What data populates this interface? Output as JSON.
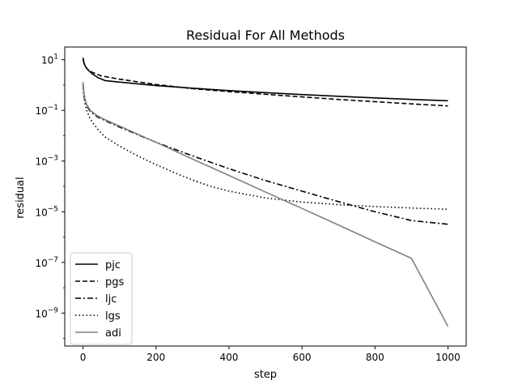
{
  "chart_data": {
    "type": "line",
    "title": "Residual For All Methods",
    "xlabel": "step",
    "ylabel": "residual",
    "xlim": [
      -50,
      1050
    ],
    "ylim_log10": [
      -10.3,
      1.5
    ],
    "yscale": "log",
    "grid": false,
    "legend_position": "lower-left",
    "x_ticks": [
      0,
      200,
      400,
      600,
      800,
      1000
    ],
    "y_ticks": [
      {
        "exp": 1,
        "base": "10",
        "sup": "1"
      },
      {
        "exp": -1,
        "base": "10",
        "sup": "−1"
      },
      {
        "exp": -3,
        "base": "10",
        "sup": "−3"
      },
      {
        "exp": -5,
        "base": "10",
        "sup": "−5"
      },
      {
        "exp": -7,
        "base": "10",
        "sup": "−7"
      },
      {
        "exp": -9,
        "base": "10",
        "sup": "−9"
      }
    ],
    "series": [
      {
        "name": "pjc",
        "style": "solid",
        "color": "#000000",
        "points": [
          [
            0,
            12
          ],
          [
            3,
            7
          ],
          [
            8,
            5
          ],
          [
            15,
            3.8
          ],
          [
            25,
            2.8
          ],
          [
            40,
            2.0
          ],
          [
            60,
            1.5
          ],
          [
            100,
            1.3
          ],
          [
            200,
            0.95
          ],
          [
            300,
            0.75
          ],
          [
            400,
            0.6
          ],
          [
            500,
            0.5
          ],
          [
            600,
            0.42
          ],
          [
            700,
            0.36
          ],
          [
            800,
            0.31
          ],
          [
            900,
            0.27
          ],
          [
            1000,
            0.24
          ]
        ]
      },
      {
        "name": "pgs",
        "style": "dashed",
        "color": "#000000",
        "points": [
          [
            0,
            10
          ],
          [
            5,
            6
          ],
          [
            12,
            4.2
          ],
          [
            25,
            3.2
          ],
          [
            50,
            2.3
          ],
          [
            100,
            1.7
          ],
          [
            200,
            1.05
          ],
          [
            300,
            0.72
          ],
          [
            400,
            0.55
          ],
          [
            500,
            0.43
          ],
          [
            600,
            0.34
          ],
          [
            700,
            0.27
          ],
          [
            800,
            0.22
          ],
          [
            900,
            0.18
          ],
          [
            1000,
            0.15
          ]
        ]
      },
      {
        "name": "ljc",
        "style": "dashdot",
        "color": "#000000",
        "points": [
          [
            0,
            1.2
          ],
          [
            2,
            0.5
          ],
          [
            5,
            0.25
          ],
          [
            10,
            0.15
          ],
          [
            20,
            0.09
          ],
          [
            40,
            0.055
          ],
          [
            60,
            0.04
          ],
          [
            100,
            0.022
          ],
          [
            150,
            0.011
          ],
          [
            200,
            0.0055
          ],
          [
            300,
            0.0016
          ],
          [
            400,
            0.0005
          ],
          [
            500,
            0.00017
          ],
          [
            600,
            6.5e-05
          ],
          [
            700,
            2.5e-05
          ],
          [
            800,
            1e-05
          ],
          [
            900,
            4.5e-06
          ],
          [
            1000,
            3.2e-06
          ]
        ]
      },
      {
        "name": "lgs",
        "style": "dotted",
        "color": "#000000",
        "points": [
          [
            0,
            1.0
          ],
          [
            2,
            0.4
          ],
          [
            5,
            0.2
          ],
          [
            10,
            0.1
          ],
          [
            20,
            0.045
          ],
          [
            40,
            0.018
          ],
          [
            60,
            0.009
          ],
          [
            100,
            0.0039
          ],
          [
            150,
            0.0016
          ],
          [
            200,
            0.00072
          ],
          [
            250,
            0.00035
          ],
          [
            300,
            0.00018
          ],
          [
            350,
            0.0001
          ],
          [
            400,
            6.5e-05
          ],
          [
            500,
            3.5e-05
          ],
          [
            600,
            2.4e-05
          ],
          [
            700,
            1.9e-05
          ],
          [
            800,
            1.6e-05
          ],
          [
            900,
            1.4e-05
          ],
          [
            1000,
            1.25e-05
          ]
        ]
      },
      {
        "name": "adi",
        "style": "solid",
        "color": "#808080",
        "points": [
          [
            0,
            1.3
          ],
          [
            2,
            0.6
          ],
          [
            5,
            0.3
          ],
          [
            10,
            0.17
          ],
          [
            20,
            0.1
          ],
          [
            40,
            0.06
          ],
          [
            60,
            0.043
          ],
          [
            100,
            0.024
          ],
          [
            200,
            0.0055
          ],
          [
            300,
            0.0012
          ],
          [
            400,
            0.00027
          ],
          [
            500,
            6e-05
          ],
          [
            600,
            1.35e-05
          ],
          [
            700,
            3e-06
          ],
          [
            800,
            6.5e-07
          ],
          [
            900,
            1.45e-07
          ],
          [
            1000,
            3e-10
          ]
        ]
      }
    ]
  }
}
